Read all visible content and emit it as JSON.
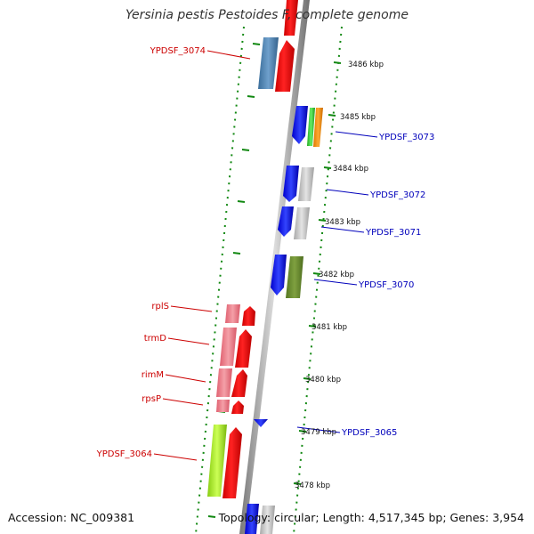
{
  "title": "Yersinia pestis Pestoides F, complete genome",
  "footer": {
    "accession": "Accession: NC_009381",
    "summary": "Topology: circular; Length: 4,517,345 bp; Genes: 3,954"
  },
  "colors": {
    "backbone": "#888888",
    "left_label": "#cc0000",
    "right_label": "#0000bb",
    "ticks": "#118811"
  },
  "scale": [
    "3486 kbp",
    "3485 kbp",
    "3484 kbp",
    "3483 kbp",
    "3482 kbp",
    "3481 kbp",
    "3480 kbp",
    "3479 kbp",
    "3478 kbp"
  ],
  "genes_left": [
    "YPDSF_3074",
    "rplS",
    "trmD",
    "rimM",
    "rpsP",
    "YPDSF_3064"
  ],
  "genes_right": [
    "YPDSF_3073",
    "YPDSF_3072",
    "YPDSF_3071",
    "YPDSF_3070",
    "YPDSF_3065"
  ]
}
